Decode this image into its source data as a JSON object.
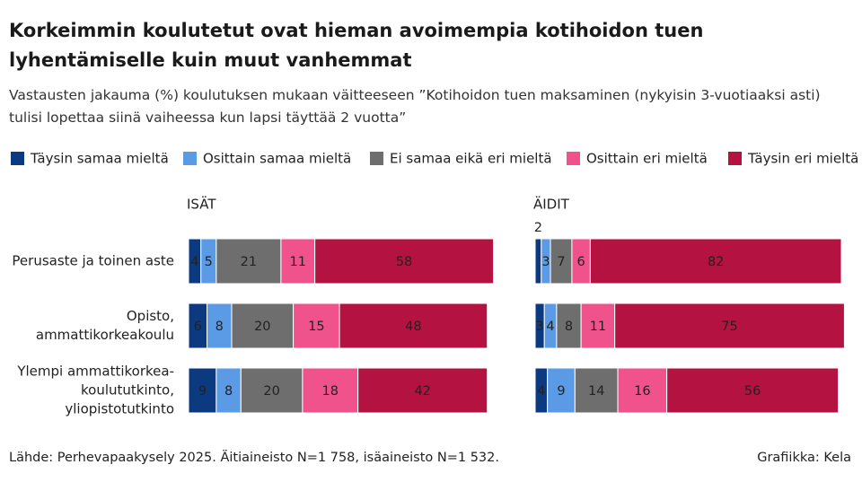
{
  "header": {
    "title": "Korkeimmin koulutetut ovat hieman avoimempia kotihoidon tuen lyhentämiselle kuin muut vanhemmat",
    "subtitle": "Vastausten jakauma (%) koulutuksen mukaan väitteeseen ”Kotihoidon tuen maksaminen (nykyisin 3-vuotiaaksi asti) tulisi lopettaa siinä vaiheessa kun lapsi täyttää 2 vuotta”"
  },
  "chart_data": [
    {
      "type": "stacked-bar-horizontal",
      "title": "ISÄT",
      "categories": [
        "Perusaste ja toinen aste",
        "Opisto,\nammattikorkeakoulu",
        "Ylempi ammattikorkea-\nkoulututkinto,\nyliopistotutkinto"
      ],
      "xlim": [
        0,
        100
      ],
      "series": [
        {
          "name": "Täysin samaa mieltä",
          "color": "#0b3a80",
          "values": [
            4,
            6,
            9
          ]
        },
        {
          "name": "Osittain samaa mieltä",
          "color": "#5b9be6",
          "values": [
            5,
            8,
            8
          ]
        },
        {
          "name": "Ei samaa eikä eri mieltä",
          "color": "#6e6e6e",
          "values": [
            21,
            20,
            20
          ]
        },
        {
          "name": "Osittain eri mieltä",
          "color": "#f0528b",
          "values": [
            11,
            15,
            18
          ]
        },
        {
          "name": "Täysin eri mieltä",
          "color": "#b41240",
          "values": [
            58,
            48,
            42
          ]
        }
      ]
    },
    {
      "type": "stacked-bar-horizontal",
      "title": "ÄIDIT",
      "categories": [
        null,
        null,
        null
      ],
      "xlim": [
        0,
        100
      ],
      "series": [
        {
          "name": "Täysin samaa mieltä",
          "color": "#0b3a80",
          "values": [
            2,
            3,
            4
          ]
        },
        {
          "name": "Osittain samaa mieltä",
          "color": "#5b9be6",
          "values": [
            3,
            4,
            9
          ]
        },
        {
          "name": "Ei samaa eikä eri mieltä",
          "color": "#6e6e6e",
          "values": [
            7,
            8,
            14
          ]
        },
        {
          "name": "Osittain eri mieltä",
          "color": "#f0528b",
          "values": [
            6,
            11,
            16
          ]
        },
        {
          "name": "Täysin eri mieltä",
          "color": "#b41240",
          "values": [
            82,
            75,
            56
          ]
        }
      ]
    }
  ],
  "footer": {
    "source": "Lähde: Perhevapaakysely 2025. Äitiaineisto N=1 758, isäaineisto N=1 532.",
    "credit": "Grafiikka: Kela"
  }
}
